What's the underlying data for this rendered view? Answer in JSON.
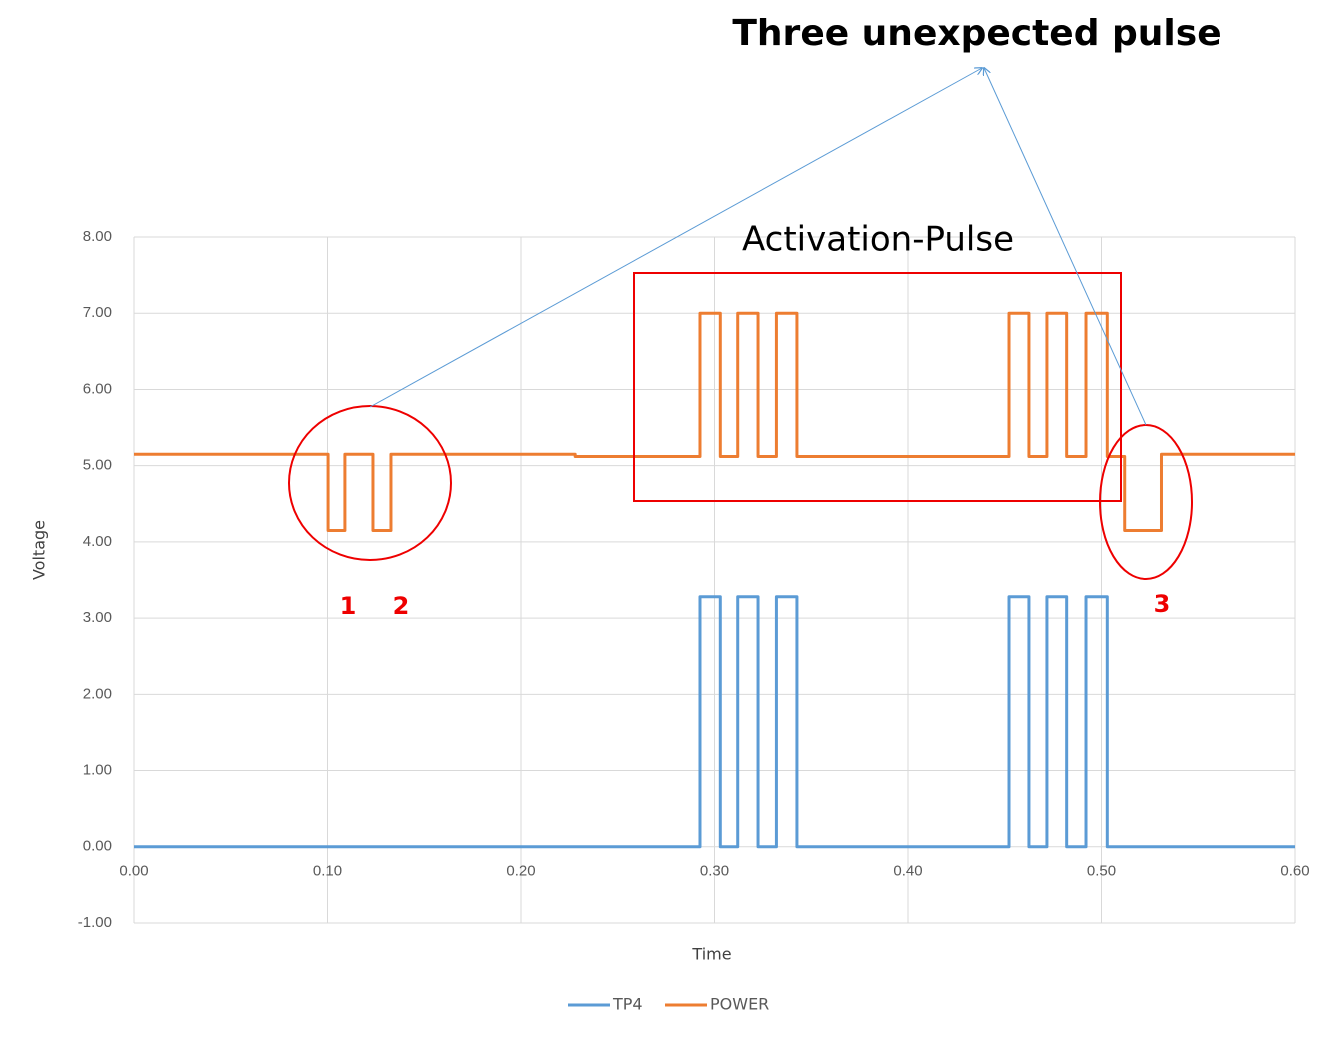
{
  "chart_data": {
    "type": "line",
    "title": "Three unexpected pulse",
    "annotations": [
      "Activation-Pulse",
      "1",
      "2",
      "3"
    ],
    "x_label": "Time",
    "y_label": "Voltage",
    "x": [
      0,
      0.1003,
      0.1003,
      0.109,
      0.109,
      0.1235,
      0.1235,
      0.1328,
      0.1328,
      0.228,
      0.228,
      0.2925,
      0.2925,
      0.303,
      0.303,
      0.312,
      0.312,
      0.3225,
      0.3225,
      0.332,
      0.332,
      0.3426,
      0.3426,
      0.4522,
      0.4522,
      0.4625,
      0.4625,
      0.4718,
      0.4718,
      0.482,
      0.482,
      0.492,
      0.492,
      0.503,
      0.503,
      0.512,
      0.512,
      0.531,
      0.531,
      0.6
    ],
    "series": [
      {
        "name": "TP4",
        "color": "#5b9bd5",
        "values": [
          0,
          0,
          0,
          0,
          0,
          0,
          0,
          0,
          0,
          0,
          0,
          0,
          3.28,
          3.28,
          0,
          0,
          3.28,
          3.28,
          0,
          0,
          3.28,
          3.28,
          0,
          0,
          3.28,
          3.28,
          0,
          0,
          3.28,
          3.28,
          0,
          0,
          3.28,
          3.28,
          0,
          0,
          0,
          0,
          0,
          0
        ]
      },
      {
        "name": "POWER",
        "color": "#ed7d31",
        "values": [
          5.15,
          5.15,
          4.15,
          4.15,
          5.15,
          5.15,
          4.15,
          4.15,
          5.15,
          5.15,
          5.12,
          5.12,
          7.0,
          7.0,
          5.12,
          5.12,
          7.0,
          7.0,
          5.12,
          5.12,
          7.0,
          7.0,
          5.12,
          5.12,
          7.0,
          7.0,
          5.12,
          5.12,
          7.0,
          7.0,
          5.12,
          5.12,
          7.0,
          7.0,
          5.12,
          5.12,
          4.15,
          4.15,
          5.15,
          5.15
        ]
      }
    ],
    "xlim": [
      0,
      0.6
    ],
    "xticks": [
      {
        "value": 0,
        "label": "0.00"
      },
      {
        "value": 0.1,
        "label": "0.10"
      },
      {
        "value": 0.2,
        "label": "0.20"
      },
      {
        "value": 0.3,
        "label": "0.30"
      },
      {
        "value": 0.4,
        "label": "0.40"
      },
      {
        "value": 0.5,
        "label": "0.50"
      },
      {
        "value": 0.6,
        "label": "0.60"
      }
    ],
    "ylim": [
      -1,
      8
    ],
    "yticks": [
      {
        "value": -1,
        "label": "-1.00"
      },
      {
        "value": 0,
        "label": "0.00"
      },
      {
        "value": 1,
        "label": "1.00"
      },
      {
        "value": 2,
        "label": "2.00"
      },
      {
        "value": 3,
        "label": "3.00"
      },
      {
        "value": 4,
        "label": "4.00"
      },
      {
        "value": 5,
        "label": "5.00"
      },
      {
        "value": 6,
        "label": "6.00"
      },
      {
        "value": 7,
        "label": "7.00"
      },
      {
        "value": 8,
        "label": "8.00"
      }
    ],
    "grid": true,
    "legend": "bottom"
  }
}
